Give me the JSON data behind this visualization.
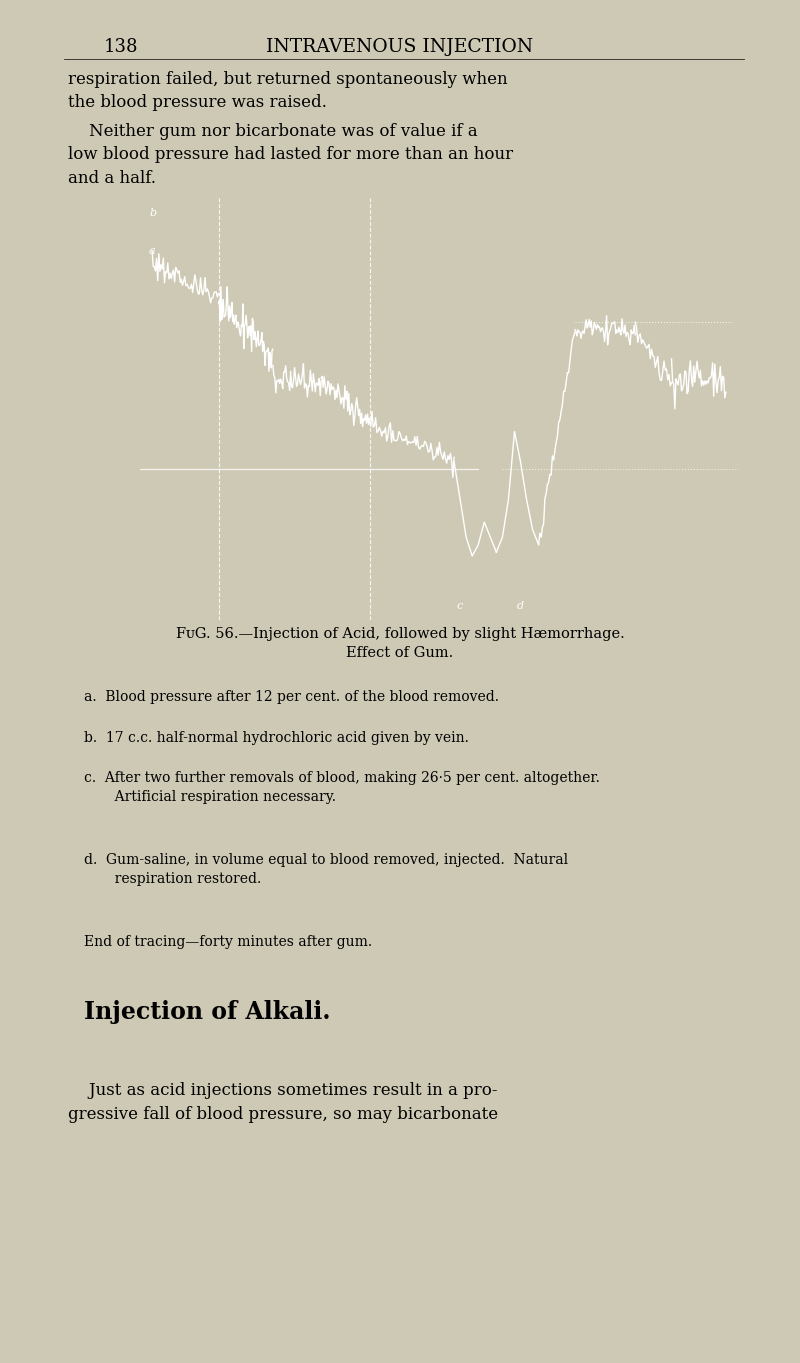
{
  "page_number": "138",
  "page_header": "INTRAVENOUS INJECTION",
  "background_color": "#cdc9b4",
  "para1": "respiration failed, but returned spontaneously when\nthe blood pressure was raised.",
  "para2_indent": "    Neither gum nor bicarbonate was of value if a\nlow blood pressure had lasted for more than an hour\nand a half.",
  "fig_caption": "FᴜG. 56.—Injection of Acid, followed by slight Hæmorrhage.\nEffect of Gum.",
  "legend_a": "a.  Blood pressure after 12 per cent. of the blood removed.",
  "legend_b": "b.  17 c.c. half-normal hydrochloric acid given by vein.",
  "legend_c": "c.  After two further removals of blood, making 26·5 per cent. altogether.\n       Artificial respiration necessary.",
  "legend_d": "d.  Gum-saline, in volume equal to blood removed, injected.  Natural\n       respiration restored.",
  "legend_end": "End of tracing—forty minutes after gum.",
  "section_heading": "Injection of Alkali.",
  "section_para": "    Just as acid injections sometimes result in a pro-\ngressive fall of blood pressure, so may bicarbonate",
  "chart_bg": "#000000",
  "chart_line_color": "#ffffff"
}
